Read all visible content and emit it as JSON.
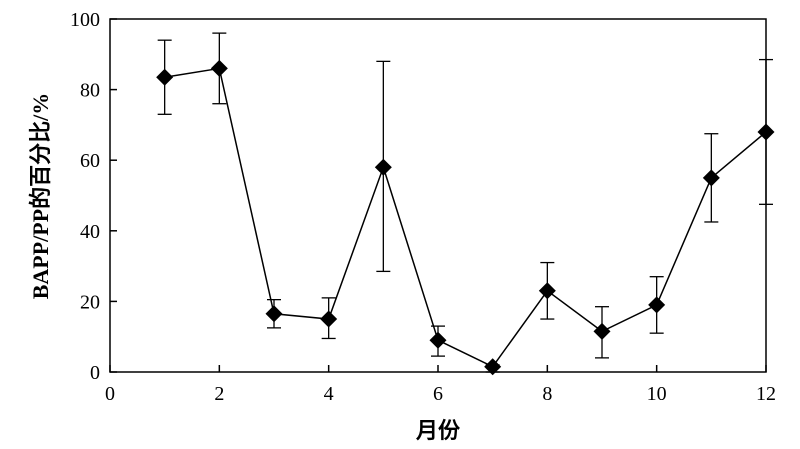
{
  "chart_data": {
    "type": "line",
    "xlabel": "月份",
    "ylabel": "BAPP/PP的百分比/%",
    "xlim": [
      0,
      12
    ],
    "ylim": [
      0,
      100
    ],
    "xticks": [
      0,
      2,
      4,
      6,
      8,
      10,
      12
    ],
    "yticks": [
      0,
      20,
      40,
      60,
      80,
      100
    ],
    "grid": false,
    "legend": "none",
    "marker": "diamond",
    "line_color": "#000000",
    "series": [
      {
        "x": [
          1,
          2,
          3,
          4,
          5,
          6,
          7,
          8,
          9,
          10,
          11,
          12
        ],
        "values": [
          83.5,
          86,
          16.5,
          15,
          58,
          9,
          1.5,
          23,
          11.5,
          19,
          55,
          68
        ],
        "error_low": [
          10.5,
          10,
          4,
          5.5,
          29.5,
          4.5,
          1.5,
          8,
          7.5,
          8,
          12.5,
          20.5
        ],
        "error_high": [
          10.5,
          10,
          4,
          6,
          30,
          4,
          0.5,
          8,
          7,
          8,
          12.5,
          20.5
        ]
      }
    ]
  }
}
